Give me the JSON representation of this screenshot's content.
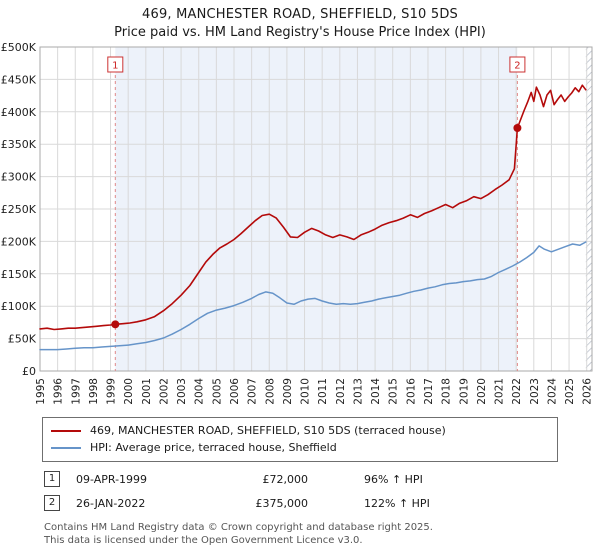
{
  "chart_data": {
    "type": "line",
    "title": "469, MANCHESTER ROAD, SHEFFIELD, S10 5DS",
    "subtitle": "Price paid vs. HM Land Registry's House Price Index (HPI)",
    "unit": "GBP thousands",
    "xlim": [
      1995,
      2026.3
    ],
    "ylim": [
      0,
      500
    ],
    "grid": true,
    "x_ticks": [
      1995,
      1996,
      1997,
      1998,
      1999,
      2000,
      2001,
      2002,
      2003,
      2004,
      2005,
      2006,
      2007,
      2008,
      2009,
      2010,
      2011,
      2012,
      2013,
      2014,
      2015,
      2016,
      2017,
      2018,
      2019,
      2020,
      2021,
      2022,
      2023,
      2024,
      2025,
      2026
    ],
    "y_ticks": {
      "values": [
        0,
        50,
        100,
        150,
        200,
        250,
        300,
        350,
        400,
        450,
        500
      ],
      "labels": [
        "£0",
        "£50K",
        "£100K",
        "£150K",
        "£200K",
        "£250K",
        "£300K",
        "£350K",
        "£400K",
        "£450K",
        "£500K"
      ]
    },
    "shaded_span": [
      1999.27,
      2022.07
    ],
    "hatched_future_span": [
      2025.95,
      2026.3
    ],
    "colors": {
      "property_line": "#b40a0a",
      "hpi_line": "#6694c9",
      "sale_marker": "#b40a0a",
      "sale_dashed_line": "#e08a8a",
      "sale_box_border": "#cc3333",
      "shaded_fill": "#edf2fa",
      "grid": "#d9d9d9"
    },
    "series": [
      {
        "name": "469, MANCHESTER ROAD, SHEFFIELD, S10 5DS (terraced house)",
        "color": "#b40a0a",
        "points": [
          [
            1995.0,
            65
          ],
          [
            1995.4,
            66
          ],
          [
            1995.8,
            64
          ],
          [
            1996.2,
            65
          ],
          [
            1996.6,
            66
          ],
          [
            1997.0,
            66
          ],
          [
            1997.4,
            67
          ],
          [
            1997.8,
            68
          ],
          [
            1998.2,
            69
          ],
          [
            1998.6,
            70
          ],
          [
            1999.0,
            71
          ],
          [
            1999.27,
            72
          ],
          [
            1999.7,
            73
          ],
          [
            2000.1,
            74
          ],
          [
            2000.5,
            76
          ],
          [
            2001.0,
            79
          ],
          [
            2001.5,
            84
          ],
          [
            2002.0,
            93
          ],
          [
            2002.5,
            104
          ],
          [
            2003.0,
            117
          ],
          [
            2003.5,
            132
          ],
          [
            2004.0,
            152
          ],
          [
            2004.4,
            168
          ],
          [
            2004.8,
            180
          ],
          [
            2005.2,
            190
          ],
          [
            2005.6,
            196
          ],
          [
            2006.0,
            203
          ],
          [
            2006.4,
            212
          ],
          [
            2006.8,
            222
          ],
          [
            2007.2,
            232
          ],
          [
            2007.6,
            240
          ],
          [
            2008.0,
            242
          ],
          [
            2008.4,
            236
          ],
          [
            2008.8,
            222
          ],
          [
            2009.2,
            207
          ],
          [
            2009.6,
            206
          ],
          [
            2010.0,
            214
          ],
          [
            2010.4,
            220
          ],
          [
            2010.8,
            216
          ],
          [
            2011.2,
            210
          ],
          [
            2011.6,
            206
          ],
          [
            2012.0,
            210
          ],
          [
            2012.4,
            207
          ],
          [
            2012.8,
            203
          ],
          [
            2013.2,
            210
          ],
          [
            2013.6,
            214
          ],
          [
            2014.0,
            219
          ],
          [
            2014.4,
            225
          ],
          [
            2014.8,
            229
          ],
          [
            2015.2,
            232
          ],
          [
            2015.6,
            236
          ],
          [
            2016.0,
            241
          ],
          [
            2016.4,
            237
          ],
          [
            2016.8,
            243
          ],
          [
            2017.2,
            247
          ],
          [
            2017.6,
            252
          ],
          [
            2018.0,
            257
          ],
          [
            2018.4,
            252
          ],
          [
            2018.8,
            259
          ],
          [
            2019.2,
            263
          ],
          [
            2019.6,
            269
          ],
          [
            2020.0,
            266
          ],
          [
            2020.4,
            272
          ],
          [
            2020.8,
            280
          ],
          [
            2021.2,
            287
          ],
          [
            2021.6,
            295
          ],
          [
            2021.9,
            312
          ],
          [
            2022.07,
            375
          ],
          [
            2022.25,
            388
          ],
          [
            2022.45,
            402
          ],
          [
            2022.65,
            415
          ],
          [
            2022.85,
            430
          ],
          [
            2023.0,
            416
          ],
          [
            2023.15,
            438
          ],
          [
            2023.35,
            426
          ],
          [
            2023.55,
            408
          ],
          [
            2023.75,
            426
          ],
          [
            2023.95,
            433
          ],
          [
            2024.15,
            411
          ],
          [
            2024.35,
            419
          ],
          [
            2024.55,
            426
          ],
          [
            2024.75,
            416
          ],
          [
            2024.95,
            423
          ],
          [
            2025.15,
            429
          ],
          [
            2025.35,
            437
          ],
          [
            2025.55,
            431
          ],
          [
            2025.75,
            441
          ],
          [
            2025.95,
            434
          ]
        ]
      },
      {
        "name": "HPI: Average price, terraced house, Sheffield",
        "color": "#6694c9",
        "points": [
          [
            1995.0,
            33
          ],
          [
            1995.5,
            33
          ],
          [
            1996.0,
            33
          ],
          [
            1996.5,
            34
          ],
          [
            1997.0,
            35
          ],
          [
            1997.5,
            36
          ],
          [
            1998.0,
            36
          ],
          [
            1998.5,
            37
          ],
          [
            1999.0,
            38
          ],
          [
            1999.5,
            39
          ],
          [
            2000.0,
            40
          ],
          [
            2000.5,
            42
          ],
          [
            2001.0,
            44
          ],
          [
            2001.5,
            47
          ],
          [
            2002.0,
            51
          ],
          [
            2002.5,
            57
          ],
          [
            2003.0,
            64
          ],
          [
            2003.5,
            72
          ],
          [
            2004.0,
            81
          ],
          [
            2004.5,
            89
          ],
          [
            2005.0,
            94
          ],
          [
            2005.5,
            97
          ],
          [
            2006.0,
            101
          ],
          [
            2006.5,
            106
          ],
          [
            2007.0,
            112
          ],
          [
            2007.4,
            118
          ],
          [
            2007.8,
            122
          ],
          [
            2008.2,
            120
          ],
          [
            2008.6,
            113
          ],
          [
            2009.0,
            105
          ],
          [
            2009.4,
            103
          ],
          [
            2009.8,
            108
          ],
          [
            2010.2,
            111
          ],
          [
            2010.6,
            112
          ],
          [
            2011.0,
            108
          ],
          [
            2011.4,
            105
          ],
          [
            2011.8,
            103
          ],
          [
            2012.2,
            104
          ],
          [
            2012.6,
            103
          ],
          [
            2013.0,
            104
          ],
          [
            2013.4,
            106
          ],
          [
            2013.8,
            108
          ],
          [
            2014.2,
            111
          ],
          [
            2014.6,
            113
          ],
          [
            2015.0,
            115
          ],
          [
            2015.4,
            117
          ],
          [
            2015.8,
            120
          ],
          [
            2016.2,
            123
          ],
          [
            2016.6,
            125
          ],
          [
            2017.0,
            128
          ],
          [
            2017.4,
            130
          ],
          [
            2017.8,
            133
          ],
          [
            2018.2,
            135
          ],
          [
            2018.6,
            136
          ],
          [
            2019.0,
            138
          ],
          [
            2019.4,
            139
          ],
          [
            2019.8,
            141
          ],
          [
            2020.2,
            142
          ],
          [
            2020.6,
            146
          ],
          [
            2021.0,
            152
          ],
          [
            2021.4,
            157
          ],
          [
            2021.8,
            162
          ],
          [
            2022.2,
            168
          ],
          [
            2022.6,
            175
          ],
          [
            2023.0,
            183
          ],
          [
            2023.3,
            193
          ],
          [
            2023.6,
            188
          ],
          [
            2024.0,
            184
          ],
          [
            2024.4,
            188
          ],
          [
            2024.8,
            192
          ],
          [
            2025.2,
            196
          ],
          [
            2025.6,
            194
          ],
          [
            2025.95,
            199
          ]
        ]
      }
    ],
    "sales": [
      {
        "num": "1",
        "x": 1999.27,
        "y": 72,
        "date": "09-APR-1999",
        "price": "£72,000",
        "hpi": "96% ↑ HPI"
      },
      {
        "num": "2",
        "x": 2022.07,
        "y": 375,
        "date": "26-JAN-2022",
        "price": "£375,000",
        "hpi": "122% ↑ HPI"
      }
    ]
  },
  "footer": {
    "line1": "Contains HM Land Registry data © Crown copyright and database right 2025.",
    "line2": "This data is licensed under the Open Government Licence v3.0."
  }
}
